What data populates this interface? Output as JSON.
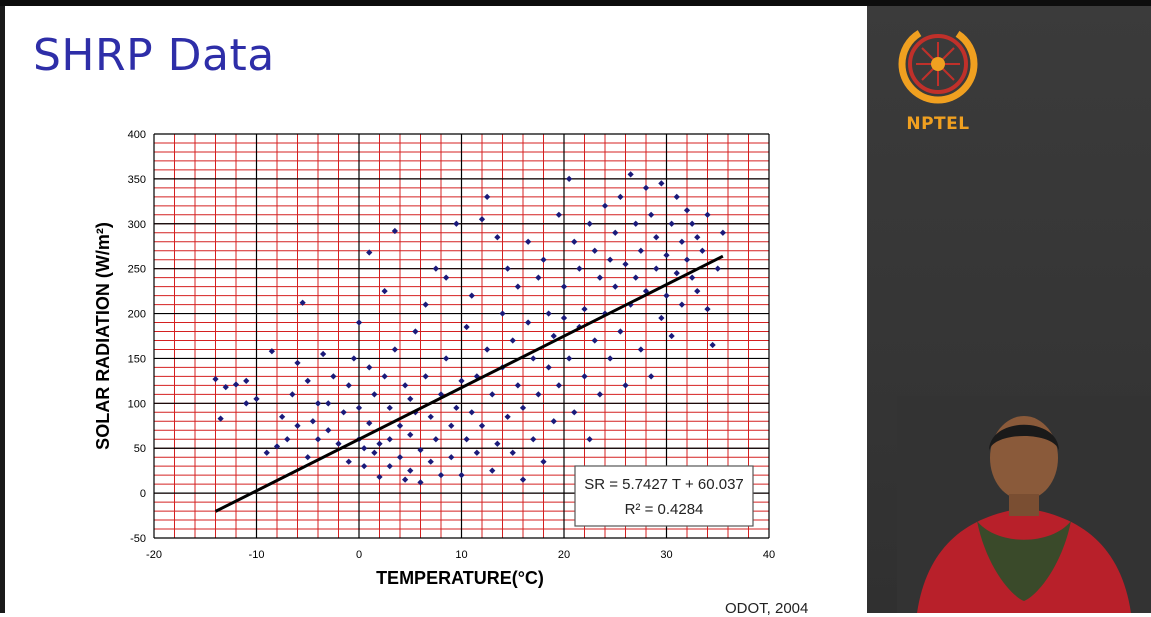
{
  "slide": {
    "title": "SHRP Data",
    "source_note": "ODOT, 2004"
  },
  "brand": {
    "name": "NPTEL",
    "accent": "#f0a020"
  },
  "colors": {
    "title": "#2e2ea8",
    "grid_red": "#d42020",
    "grid_black": "#000000",
    "points": "#1a1a7a",
    "trend": "#000000",
    "side_panel": "#363636"
  },
  "chart_data": {
    "type": "scatter",
    "xlabel": "TEMPERATURE(°C)",
    "ylabel": "SOLAR RADIATION (W/m²)",
    "xlim": [
      -20,
      40
    ],
    "ylim": [
      -50,
      400
    ],
    "xticks": [
      -20,
      -10,
      0,
      10,
      20,
      30,
      40
    ],
    "yticks": [
      -50,
      0,
      50,
      100,
      150,
      200,
      250,
      300,
      350,
      400
    ],
    "grid": true,
    "equation": "SR = 5.7427 T + 60.037",
    "r_squared": "R² = 0.4284",
    "trendline": {
      "slope": 5.7427,
      "intercept": 60.037,
      "x_range": [
        -14,
        35.5
      ]
    },
    "points": [
      [
        -14,
        127
      ],
      [
        -13.5,
        83
      ],
      [
        -13,
        118
      ],
      [
        -12,
        121
      ],
      [
        -11,
        100
      ],
      [
        -11,
        125
      ],
      [
        -10,
        105
      ],
      [
        -9,
        45
      ],
      [
        -8.5,
        158
      ],
      [
        -8,
        52
      ],
      [
        -7.5,
        85
      ],
      [
        -7,
        60
      ],
      [
        -6.5,
        110
      ],
      [
        -6,
        75
      ],
      [
        -6,
        145
      ],
      [
        -5.5,
        212
      ],
      [
        -5,
        125
      ],
      [
        -5,
        40
      ],
      [
        -4.5,
        80
      ],
      [
        -4,
        100
      ],
      [
        -4,
        60
      ],
      [
        -3.5,
        155
      ],
      [
        -3,
        100
      ],
      [
        -3,
        70
      ],
      [
        -2.5,
        130
      ],
      [
        -2,
        55
      ],
      [
        -1.5,
        90
      ],
      [
        -1,
        120
      ],
      [
        -1,
        35
      ],
      [
        -0.5,
        150
      ],
      [
        0,
        190
      ],
      [
        0,
        60
      ],
      [
        0,
        95
      ],
      [
        0.5,
        50
      ],
      [
        0.5,
        30
      ],
      [
        1,
        268
      ],
      [
        1,
        78
      ],
      [
        1,
        140
      ],
      [
        1.5,
        110
      ],
      [
        1.5,
        45
      ],
      [
        2,
        55
      ],
      [
        2,
        18
      ],
      [
        2.5,
        225
      ],
      [
        2.5,
        130
      ],
      [
        3,
        95
      ],
      [
        3,
        60
      ],
      [
        3,
        30
      ],
      [
        3.5,
        292
      ],
      [
        3.5,
        160
      ],
      [
        4,
        75
      ],
      [
        4,
        40
      ],
      [
        4.5,
        120
      ],
      [
        4.5,
        15
      ],
      [
        5,
        105
      ],
      [
        5,
        65
      ],
      [
        5,
        25
      ],
      [
        5.5,
        180
      ],
      [
        5.5,
        90
      ],
      [
        6,
        48
      ],
      [
        6,
        12
      ],
      [
        6.5,
        130
      ],
      [
        6.5,
        210
      ],
      [
        7,
        85
      ],
      [
        7,
        35
      ],
      [
        7.5,
        250
      ],
      [
        7.5,
        60
      ],
      [
        8,
        110
      ],
      [
        8,
        20
      ],
      [
        8.5,
        240
      ],
      [
        8.5,
        150
      ],
      [
        9,
        75
      ],
      [
        9,
        40
      ],
      [
        9.5,
        300
      ],
      [
        9.5,
        95
      ],
      [
        10,
        125
      ],
      [
        10,
        20
      ],
      [
        10.5,
        60
      ],
      [
        10.5,
        185
      ],
      [
        11,
        220
      ],
      [
        11,
        90
      ],
      [
        11.5,
        45
      ],
      [
        11.5,
        130
      ],
      [
        12,
        305
      ],
      [
        12,
        75
      ],
      [
        12.5,
        330
      ],
      [
        12.5,
        160
      ],
      [
        13,
        110
      ],
      [
        13,
        25
      ],
      [
        13.5,
        285
      ],
      [
        13.5,
        55
      ],
      [
        14,
        200
      ],
      [
        14,
        140
      ],
      [
        14.5,
        250
      ],
      [
        14.5,
        85
      ],
      [
        15,
        170
      ],
      [
        15,
        45
      ],
      [
        15.5,
        230
      ],
      [
        15.5,
        120
      ],
      [
        16,
        95
      ],
      [
        16,
        15
      ],
      [
        16.5,
        280
      ],
      [
        16.5,
        190
      ],
      [
        17,
        150
      ],
      [
        17,
        60
      ],
      [
        17.5,
        240
      ],
      [
        17.5,
        110
      ],
      [
        18,
        260
      ],
      [
        18,
        35
      ],
      [
        18.5,
        200
      ],
      [
        18.5,
        140
      ],
      [
        19,
        175
      ],
      [
        19,
        80
      ],
      [
        19.5,
        310
      ],
      [
        19.5,
        120
      ],
      [
        20,
        230
      ],
      [
        20,
        195
      ],
      [
        20.5,
        350
      ],
      [
        20.5,
        150
      ],
      [
        21,
        280
      ],
      [
        21,
        90
      ],
      [
        21.5,
        250
      ],
      [
        21.5,
        185
      ],
      [
        22,
        205
      ],
      [
        22,
        130
      ],
      [
        22.5,
        300
      ],
      [
        22.5,
        60
      ],
      [
        23,
        270
      ],
      [
        23,
        170
      ],
      [
        23.5,
        240
      ],
      [
        23.5,
        110
      ],
      [
        24,
        320
      ],
      [
        24,
        200
      ],
      [
        24.5,
        260
      ],
      [
        24.5,
        150
      ],
      [
        25,
        290
      ],
      [
        25,
        230
      ],
      [
        25.5,
        330
      ],
      [
        25.5,
        180
      ],
      [
        26,
        255
      ],
      [
        26,
        120
      ],
      [
        26.5,
        355
      ],
      [
        26.5,
        210
      ],
      [
        27,
        300
      ],
      [
        27,
        240
      ],
      [
        27.5,
        270
      ],
      [
        27.5,
        160
      ],
      [
        28,
        340
      ],
      [
        28,
        225
      ],
      [
        28.5,
        310
      ],
      [
        28.5,
        130
      ],
      [
        29,
        285
      ],
      [
        29,
        250
      ],
      [
        29.5,
        195
      ],
      [
        29.5,
        345
      ],
      [
        30,
        265
      ],
      [
        30,
        220
      ],
      [
        30.5,
        300
      ],
      [
        30.5,
        175
      ],
      [
        31,
        245
      ],
      [
        31,
        330
      ],
      [
        31.5,
        280
      ],
      [
        31.5,
        210
      ],
      [
        32,
        315
      ],
      [
        32,
        260
      ],
      [
        32.5,
        240
      ],
      [
        32.5,
        300
      ],
      [
        33,
        285
      ],
      [
        33,
        225
      ],
      [
        33.5,
        270
      ],
      [
        34,
        310
      ],
      [
        34,
        205
      ],
      [
        34.5,
        165
      ],
      [
        35,
        250
      ],
      [
        35.5,
        290
      ]
    ]
  }
}
